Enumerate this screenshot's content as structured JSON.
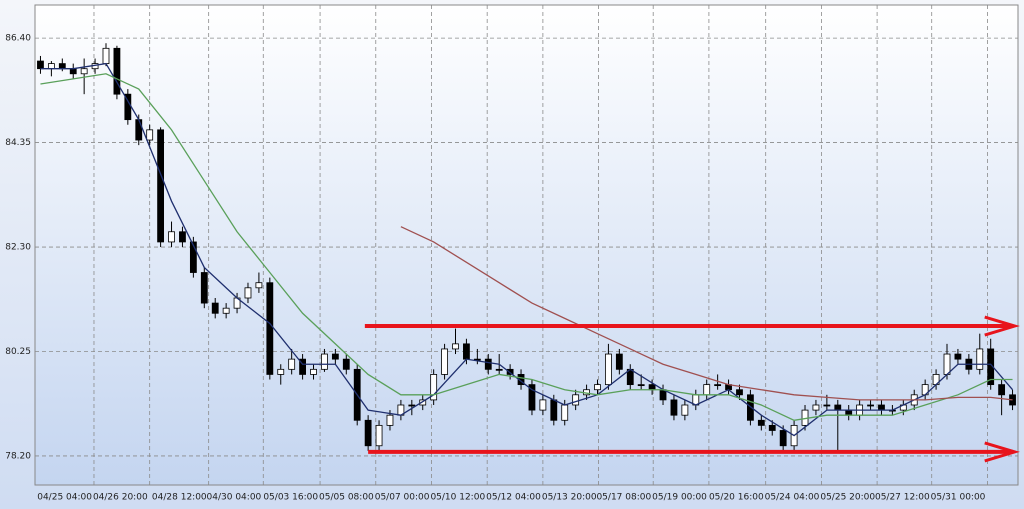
{
  "chart_data": {
    "type": "candlestick",
    "xlim": [
      -0.5,
      89.5
    ],
    "ylim": [
      77.63,
      87.05
    ],
    "yticks": [
      {
        "value": 78.2,
        "label": "78.20"
      },
      {
        "value": 80.25,
        "label": "80.25"
      },
      {
        "value": 82.3,
        "label": "82.30"
      },
      {
        "value": 84.35,
        "label": "84.35"
      },
      {
        "value": 86.4,
        "label": "86.40"
      }
    ],
    "xticks": [
      {
        "value": 4.9,
        "label": "04/25 04:00"
      },
      {
        "value": 10.0,
        "label": "04/26 20:00"
      },
      {
        "value": 15.4,
        "label": "04/28 12:00"
      },
      {
        "value": 20.4,
        "label": "04/30 04:00"
      },
      {
        "value": 25.6,
        "label": "05/03 16:00"
      },
      {
        "value": 30.7,
        "label": "05/05 08:00"
      },
      {
        "value": 35.8,
        "label": "05/07 00:00"
      },
      {
        "value": 40.9,
        "label": "05/10 12:00"
      },
      {
        "value": 46.0,
        "label": "05/12 04:00"
      },
      {
        "value": 51.1,
        "label": "05/13 20:00"
      },
      {
        "value": 56.1,
        "label": "05/17 08:00"
      },
      {
        "value": 61.2,
        "label": "05/19 00:00"
      },
      {
        "value": 66.4,
        "label": "05/20 16:00"
      },
      {
        "value": 71.5,
        "label": "05/24 04:00"
      },
      {
        "value": 76.6,
        "label": "05/25 20:00"
      },
      {
        "value": 81.6,
        "label": "05/27 12:00"
      },
      {
        "value": 86.7,
        "label": "05/31 00:00"
      }
    ],
    "grid": true,
    "up_color": "#ffffff",
    "down_color": "#000000",
    "candles": [
      [
        85.95,
        86.05,
        85.7,
        85.8
      ],
      [
        85.8,
        85.95,
        85.65,
        85.9
      ],
      [
        85.9,
        86.0,
        85.75,
        85.8
      ],
      [
        85.8,
        85.9,
        85.6,
        85.7
      ],
      [
        85.7,
        86.0,
        85.3,
        85.8
      ],
      [
        85.8,
        86.0,
        85.7,
        85.9
      ],
      [
        85.9,
        86.3,
        85.85,
        86.2
      ],
      [
        86.2,
        86.25,
        85.2,
        85.3
      ],
      [
        85.3,
        85.4,
        84.7,
        84.8
      ],
      [
        84.8,
        84.9,
        84.3,
        84.4
      ],
      [
        84.4,
        84.7,
        84.3,
        84.6
      ],
      [
        84.6,
        84.65,
        82.3,
        82.4
      ],
      [
        82.4,
        82.8,
        82.3,
        82.6
      ],
      [
        82.6,
        82.7,
        82.3,
        82.4
      ],
      [
        82.4,
        82.5,
        81.7,
        81.8
      ],
      [
        81.8,
        81.9,
        81.1,
        81.2
      ],
      [
        81.2,
        81.3,
        80.9,
        81.0
      ],
      [
        81.0,
        81.2,
        80.9,
        81.1
      ],
      [
        81.1,
        81.4,
        81.0,
        81.3
      ],
      [
        81.3,
        81.6,
        81.2,
        81.5
      ],
      [
        81.5,
        81.8,
        81.4,
        81.6
      ],
      [
        81.6,
        81.7,
        79.7,
        79.8
      ],
      [
        79.8,
        80.0,
        79.6,
        79.9
      ],
      [
        79.9,
        80.3,
        79.8,
        80.1
      ],
      [
        80.1,
        80.2,
        79.7,
        79.8
      ],
      [
        79.8,
        80.0,
        79.7,
        79.9
      ],
      [
        79.9,
        80.3,
        79.85,
        80.2
      ],
      [
        80.2,
        80.3,
        80.0,
        80.1
      ],
      [
        80.1,
        80.2,
        79.8,
        79.9
      ],
      [
        79.9,
        80.0,
        78.8,
        78.9
      ],
      [
        78.9,
        79.0,
        78.3,
        78.4
      ],
      [
        78.4,
        78.9,
        78.3,
        78.8
      ],
      [
        78.8,
        79.1,
        78.7,
        79.0
      ],
      [
        79.0,
        79.3,
        78.9,
        79.2
      ],
      [
        79.2,
        79.3,
        79.0,
        79.2
      ],
      [
        79.2,
        79.4,
        79.1,
        79.3
      ],
      [
        79.3,
        79.9,
        79.2,
        79.8
      ],
      [
        79.8,
        80.4,
        79.7,
        80.3
      ],
      [
        80.3,
        80.7,
        80.2,
        80.4
      ],
      [
        80.4,
        80.5,
        80.0,
        80.1
      ],
      [
        80.1,
        80.3,
        80.0,
        80.1
      ],
      [
        80.1,
        80.2,
        79.8,
        79.9
      ],
      [
        79.9,
        80.2,
        79.8,
        79.9
      ],
      [
        79.9,
        80.0,
        79.7,
        79.8
      ],
      [
        79.8,
        79.9,
        79.5,
        79.6
      ],
      [
        79.6,
        79.7,
        79.0,
        79.1
      ],
      [
        79.1,
        79.4,
        79.0,
        79.3
      ],
      [
        79.3,
        79.4,
        78.8,
        78.9
      ],
      [
        78.9,
        79.3,
        78.8,
        79.2
      ],
      [
        79.2,
        79.5,
        79.1,
        79.4
      ],
      [
        79.4,
        79.6,
        79.3,
        79.5
      ],
      [
        79.5,
        79.7,
        79.4,
        79.6
      ],
      [
        79.6,
        80.4,
        79.5,
        80.2
      ],
      [
        80.2,
        80.3,
        79.8,
        79.9
      ],
      [
        79.9,
        80.0,
        79.5,
        79.6
      ],
      [
        79.6,
        79.8,
        79.5,
        79.6
      ],
      [
        79.6,
        79.7,
        79.4,
        79.5
      ],
      [
        79.5,
        79.6,
        79.2,
        79.3
      ],
      [
        79.3,
        79.4,
        78.9,
        79.0
      ],
      [
        79.0,
        79.3,
        78.9,
        79.2
      ],
      [
        79.2,
        79.5,
        79.1,
        79.4
      ],
      [
        79.4,
        79.7,
        79.3,
        79.6
      ],
      [
        79.6,
        79.8,
        79.5,
        79.6
      ],
      [
        79.6,
        79.7,
        79.4,
        79.5
      ],
      [
        79.5,
        79.6,
        79.3,
        79.4
      ],
      [
        79.4,
        79.5,
        78.8,
        78.9
      ],
      [
        78.9,
        79.0,
        78.7,
        78.8
      ],
      [
        78.8,
        78.9,
        78.6,
        78.7
      ],
      [
        78.7,
        78.8,
        78.3,
        78.4
      ],
      [
        78.4,
        78.9,
        78.3,
        78.8
      ],
      [
        78.8,
        79.2,
        78.7,
        79.1
      ],
      [
        79.1,
        79.3,
        79.0,
        79.2
      ],
      [
        79.2,
        79.4,
        79.1,
        79.2
      ],
      [
        79.2,
        79.3,
        78.3,
        79.1
      ],
      [
        79.1,
        79.2,
        78.9,
        79.0
      ],
      [
        79.0,
        79.3,
        78.9,
        79.2
      ],
      [
        79.2,
        79.3,
        79.1,
        79.2
      ],
      [
        79.2,
        79.3,
        79.0,
        79.1
      ],
      [
        79.1,
        79.2,
        79.0,
        79.1
      ],
      [
        79.1,
        79.3,
        79.0,
        79.2
      ],
      [
        79.2,
        79.5,
        79.1,
        79.4
      ],
      [
        79.4,
        79.7,
        79.3,
        79.6
      ],
      [
        79.6,
        79.9,
        79.5,
        79.8
      ],
      [
        79.8,
        80.4,
        79.7,
        80.2
      ],
      [
        80.2,
        80.3,
        80.0,
        80.1
      ],
      [
        80.1,
        80.2,
        79.8,
        79.9
      ],
      [
        79.9,
        80.6,
        79.8,
        80.3
      ],
      [
        80.3,
        80.5,
        79.5,
        79.6
      ],
      [
        79.6,
        79.7,
        79.0,
        79.4
      ],
      [
        79.4,
        79.5,
        79.1,
        79.2
      ]
    ],
    "series": [
      {
        "color": "#1f2f6e",
        "x": [
          0,
          3,
          6,
          9,
          12,
          15,
          18,
          21,
          24,
          27,
          30,
          33,
          36,
          39,
          42,
          45,
          48,
          51,
          54,
          57,
          60,
          63,
          66,
          69,
          72,
          75,
          78,
          81,
          84,
          87,
          89
        ],
        "values": [
          85.8,
          85.8,
          85.9,
          84.8,
          83.2,
          81.9,
          81.3,
          80.8,
          80.0,
          80.0,
          79.1,
          79.0,
          79.4,
          80.1,
          80.0,
          79.5,
          79.2,
          79.4,
          79.9,
          79.5,
          79.2,
          79.5,
          79.0,
          78.6,
          79.1,
          79.1,
          79.1,
          79.4,
          80.0,
          80.0,
          79.5
        ]
      },
      {
        "color": "#5aa05a",
        "x": [
          0,
          3,
          6,
          9,
          12,
          15,
          18,
          21,
          24,
          27,
          30,
          33,
          36,
          39,
          42,
          45,
          48,
          51,
          54,
          57,
          60,
          63,
          66,
          69,
          72,
          75,
          78,
          81,
          84,
          87,
          89
        ],
        "values": [
          85.5,
          85.6,
          85.7,
          85.4,
          84.6,
          83.6,
          82.6,
          81.8,
          81.0,
          80.4,
          79.8,
          79.4,
          79.4,
          79.6,
          79.8,
          79.7,
          79.5,
          79.4,
          79.5,
          79.5,
          79.4,
          79.4,
          79.2,
          78.9,
          79.0,
          79.0,
          79.0,
          79.2,
          79.4,
          79.7,
          79.7
        ]
      },
      {
        "color": "#a05050",
        "x": [
          33,
          36,
          39,
          42,
          45,
          48,
          51,
          54,
          57,
          60,
          63,
          66,
          69,
          72,
          75,
          78,
          81,
          84,
          87,
          89
        ],
        "values": [
          82.7,
          82.4,
          82.0,
          81.6,
          81.2,
          80.9,
          80.6,
          80.3,
          80.0,
          79.8,
          79.6,
          79.5,
          79.4,
          79.35,
          79.3,
          79.3,
          79.3,
          79.35,
          79.35,
          79.3
        ]
      }
    ],
    "arrows": [
      {
        "color": "#e8141c",
        "y": 80.75,
        "x": [
          29.7,
          89.2
        ]
      },
      {
        "color": "#e8141c",
        "y": 78.28,
        "x": [
          30.0,
          89.2
        ]
      }
    ]
  }
}
